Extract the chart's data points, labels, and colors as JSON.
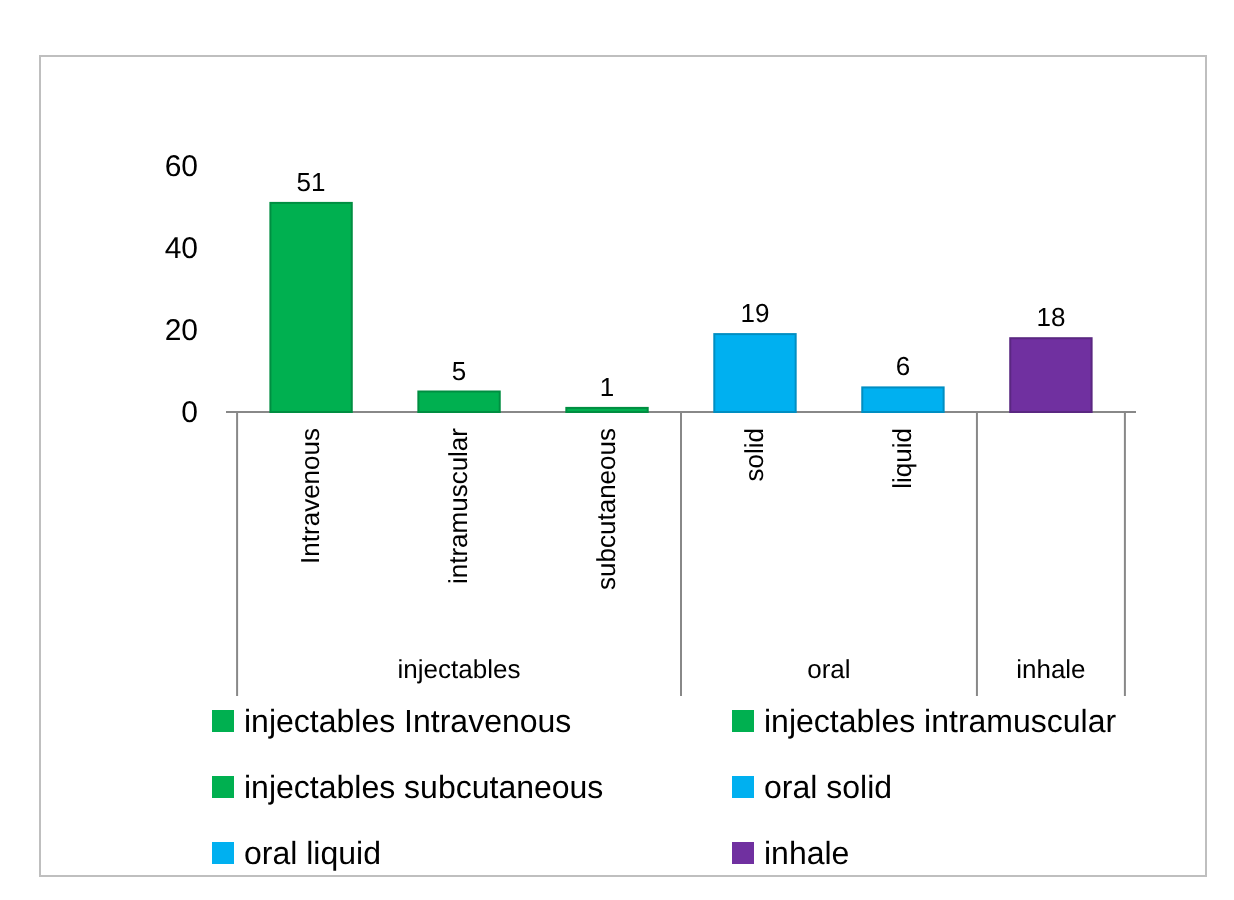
{
  "chart_data": {
    "type": "bar",
    "categories": [
      "Intravenous",
      "intramuscular",
      "subcutaneous",
      "solid",
      "liquid",
      null
    ],
    "series": [
      {
        "name": "injectables Intravenous",
        "color": "#00b050",
        "values": [
          51,
          null,
          null,
          null,
          null,
          null
        ]
      },
      {
        "name": "injectables intramuscular",
        "color": "#00b050",
        "values": [
          null,
          5,
          null,
          null,
          null,
          null
        ]
      },
      {
        "name": "injectables subcutaneous",
        "color": "#00b050",
        "values": [
          null,
          null,
          1,
          null,
          null,
          null
        ]
      },
      {
        "name": "oral solid",
        "color": "#00b0f0",
        "values": [
          null,
          null,
          null,
          19,
          null,
          null
        ]
      },
      {
        "name": "oral liquid",
        "color": "#00b0f0",
        "values": [
          null,
          null,
          null,
          null,
          6,
          null
        ]
      },
      {
        "name": "inhale",
        "color": "#7030a0",
        "values": [
          null,
          null,
          null,
          null,
          null,
          18
        ]
      }
    ],
    "annotations": [
      "injectables",
      "oral",
      "inhale"
    ],
    "ylim": [
      0,
      60
    ],
    "yticks": [
      0,
      20,
      40,
      60
    ],
    "data_labels": true,
    "legend": "bottom",
    "grid": false
  }
}
